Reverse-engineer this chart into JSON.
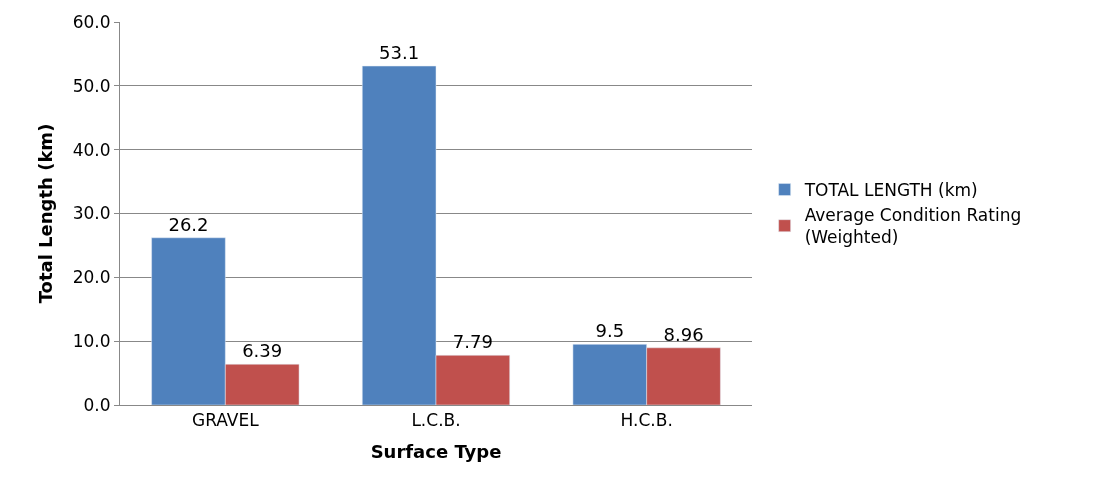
{
  "chart_data": {
    "type": "bar",
    "xlabel": "Surface Type",
    "ylabel": "Total Length (km)",
    "categories": [
      "GRAVEL",
      "L.C.B.",
      "H.C.B."
    ],
    "series": [
      {
        "name": "TOTAL LENGTH (km)",
        "color": "#4f81bd",
        "values": [
          26.2,
          53.1,
          9.5
        ]
      },
      {
        "name": "Average Condition Rating (Weighted)",
        "color": "#c0504d",
        "values": [
          6.39,
          7.79,
          8.96
        ]
      }
    ],
    "ylim": [
      0,
      60
    ],
    "yticks": [
      {
        "value": 0,
        "label": "0.0"
      },
      {
        "value": 10,
        "label": "10.0"
      },
      {
        "value": 20,
        "label": "20.0"
      },
      {
        "value": 30,
        "label": "30.0"
      },
      {
        "value": 40,
        "label": "40.0"
      },
      {
        "value": 50,
        "label": "50.0"
      },
      {
        "value": 60,
        "label": "60.0"
      }
    ],
    "grid": "y",
    "legend": "right",
    "data_labels": true
  }
}
